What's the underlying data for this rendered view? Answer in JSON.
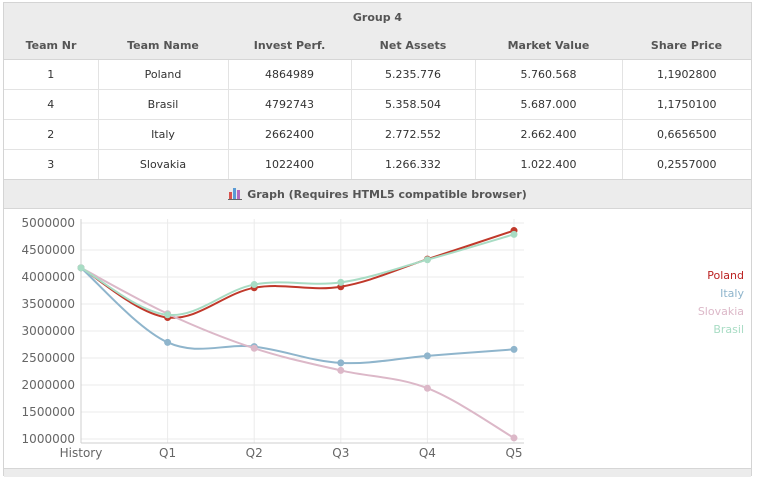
{
  "group": {
    "title": "Group 4"
  },
  "table": {
    "columns": [
      "Team Nr",
      "Team Name",
      "Invest Perf.",
      "Net Assets",
      "Market Value",
      "Share Price"
    ],
    "rows": [
      [
        "1",
        "Poland",
        "4864989",
        "5.235.776",
        "5.760.568",
        "1,1902800"
      ],
      [
        "4",
        "Brasil",
        "4792743",
        "5.358.504",
        "5.687.000",
        "1,1750100"
      ],
      [
        "2",
        "Italy",
        "2662400",
        "2.772.552",
        "2.662.400",
        "0,6656500"
      ],
      [
        "3",
        "Slovakia",
        "1022400",
        "1.266.332",
        "1.022.400",
        "0,2557000"
      ]
    ]
  },
  "graph": {
    "header": "Graph (Requires HTML5 compatible browser)",
    "icon": "bar-chart-icon"
  },
  "chart_data": {
    "type": "line",
    "x": [
      "History",
      "Q1",
      "Q2",
      "Q3",
      "Q4",
      "Q5"
    ],
    "ylim": [
      1000000,
      5000000
    ],
    "yticks": [
      "5000000",
      "4500000",
      "4000000",
      "3500000",
      "3000000",
      "2500000",
      "2000000",
      "1500000",
      "1000000"
    ],
    "grid": true,
    "legend_position": "right",
    "series": [
      {
        "name": "Poland",
        "color": "#c0392b",
        "values": [
          4170000,
          3250000,
          3800000,
          3820000,
          4330000,
          4860000
        ]
      },
      {
        "name": "Italy",
        "color": "#8fb5cc",
        "values": [
          4170000,
          2790000,
          2710000,
          2410000,
          2540000,
          2660000
        ]
      },
      {
        "name": "Slovakia",
        "color": "#dcb8c8",
        "values": [
          4170000,
          3320000,
          2680000,
          2270000,
          1940000,
          1020000
        ]
      },
      {
        "name": "Brasil",
        "color": "#a8dcc4",
        "values": [
          4170000,
          3300000,
          3860000,
          3900000,
          4320000,
          4790000
        ]
      }
    ]
  }
}
